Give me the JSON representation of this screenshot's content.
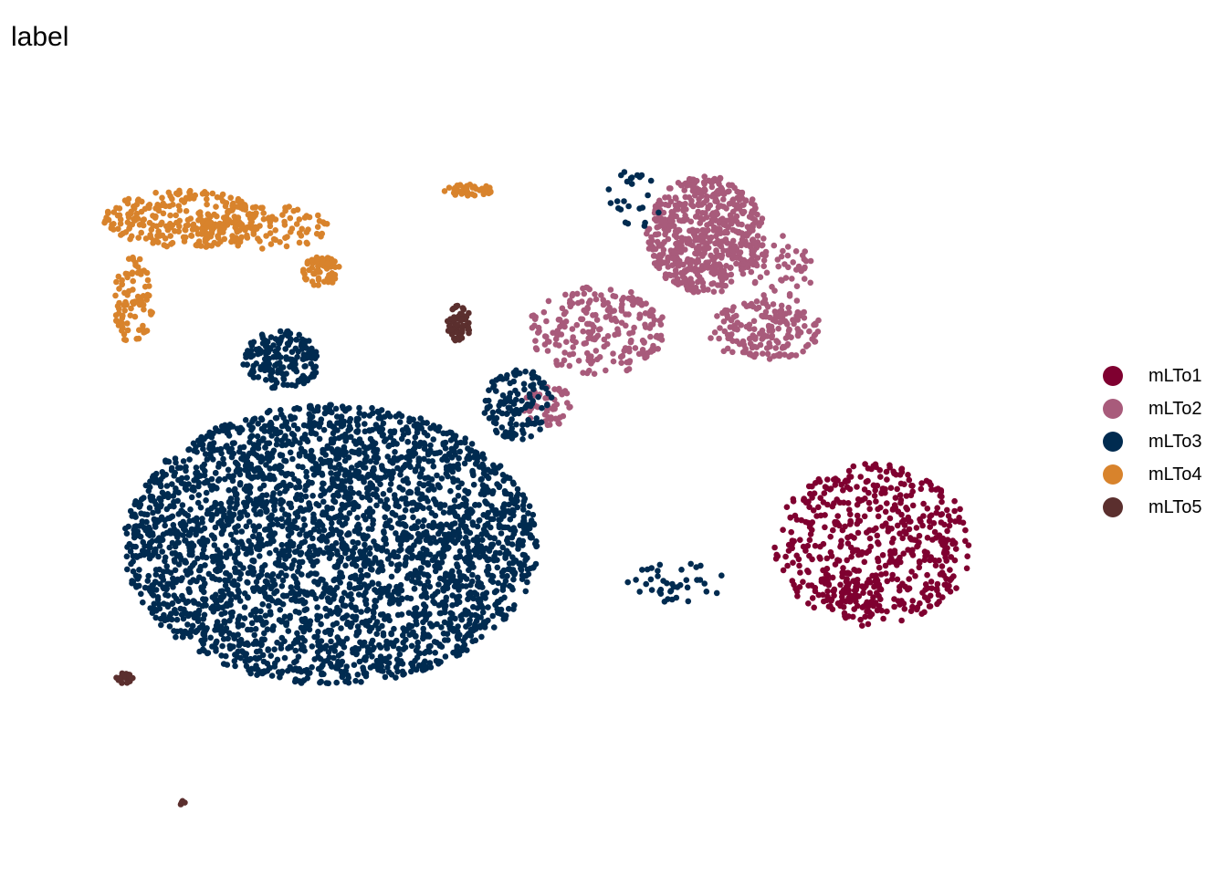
{
  "chart_data": {
    "type": "scatter",
    "title": "label",
    "xlabel": "",
    "ylabel": "",
    "axes": "none",
    "grid": false,
    "legend_position": "right",
    "xlim": [
      0,
      100
    ],
    "ylim": [
      0,
      100
    ],
    "series": [
      {
        "name": "mLTo1",
        "color": "#7f0030",
        "clusters": [
          {
            "cx": 83,
            "cy": 38,
            "rx": 10,
            "ry": 11,
            "n": 520
          },
          {
            "cx": 81,
            "cy": 32,
            "rx": 4,
            "ry": 3,
            "n": 60
          },
          {
            "cx": 33,
            "cy": 22,
            "rx": 0.3,
            "ry": 0.3,
            "n": 1
          }
        ]
      },
      {
        "name": "mLTo2",
        "color": "#a85b7b",
        "clusters": [
          {
            "cx": 66,
            "cy": 80,
            "rx": 6,
            "ry": 8,
            "n": 600
          },
          {
            "cx": 72,
            "cy": 67,
            "rx": 6,
            "ry": 4,
            "n": 160
          },
          {
            "cx": 55,
            "cy": 67,
            "rx": 7,
            "ry": 6,
            "n": 220
          },
          {
            "cx": 50,
            "cy": 57,
            "rx": 2.5,
            "ry": 3,
            "n": 50
          },
          {
            "cx": 74,
            "cy": 74,
            "rx": 3,
            "ry": 6,
            "n": 60
          }
        ]
      },
      {
        "name": "mLTo3",
        "color": "#002b50",
        "clusters": [
          {
            "cx": 28,
            "cy": 38,
            "rx": 21,
            "ry": 19,
            "n": 3200
          },
          {
            "cx": 23,
            "cy": 63,
            "rx": 4,
            "ry": 4,
            "n": 180
          },
          {
            "cx": 47,
            "cy": 57,
            "rx": 3.5,
            "ry": 5,
            "n": 120
          },
          {
            "cx": 63,
            "cy": 33,
            "rx": 5,
            "ry": 3,
            "n": 40
          },
          {
            "cx": 59,
            "cy": 85,
            "rx": 3,
            "ry": 4,
            "n": 25
          }
        ]
      },
      {
        "name": "mLTo4",
        "color": "#d8832c",
        "clusters": [
          {
            "cx": 13,
            "cy": 82,
            "rx": 8,
            "ry": 4,
            "n": 260
          },
          {
            "cx": 8,
            "cy": 71,
            "rx": 2,
            "ry": 6,
            "n": 90
          },
          {
            "cx": 21,
            "cy": 81,
            "rx": 7,
            "ry": 3,
            "n": 110
          },
          {
            "cx": 27,
            "cy": 75,
            "rx": 2,
            "ry": 2,
            "n": 60
          },
          {
            "cx": 42,
            "cy": 86,
            "rx": 2.5,
            "ry": 0.8,
            "n": 40
          }
        ]
      },
      {
        "name": "mLTo5",
        "color": "#5b2f2e",
        "clusters": [
          {
            "cx": 41,
            "cy": 68,
            "rx": 1.2,
            "ry": 2.5,
            "n": 60
          },
          {
            "cx": 7,
            "cy": 20,
            "rx": 1,
            "ry": 0.7,
            "n": 25
          },
          {
            "cx": 13,
            "cy": 3,
            "rx": 0.3,
            "ry": 0.4,
            "n": 4
          }
        ]
      }
    ]
  }
}
